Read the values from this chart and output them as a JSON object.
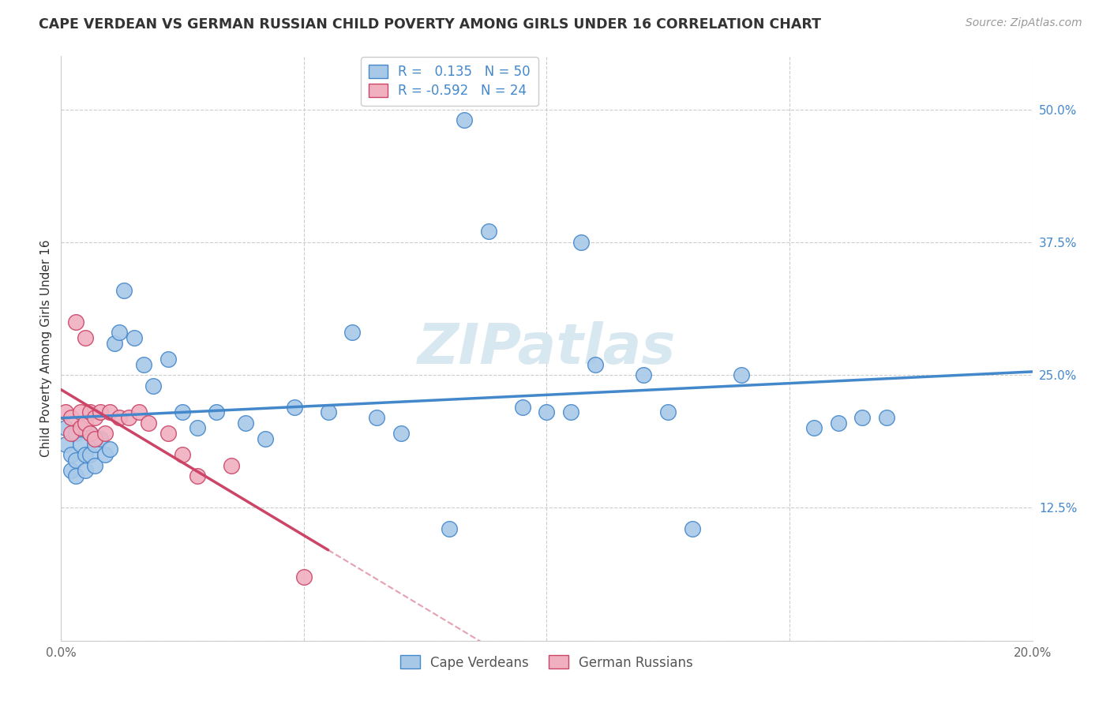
{
  "title": "CAPE VERDEAN VS GERMAN RUSSIAN CHILD POVERTY AMONG GIRLS UNDER 16 CORRELATION CHART",
  "source": "Source: ZipAtlas.com",
  "ylabel": "Child Poverty Among Girls Under 16",
  "xlim": [
    0.0,
    0.2
  ],
  "ylim": [
    0.0,
    0.55
  ],
  "yticks": [
    0.0,
    0.125,
    0.25,
    0.375,
    0.5
  ],
  "ytick_labels": [
    "",
    "12.5%",
    "25.0%",
    "37.5%",
    "50.0%"
  ],
  "xticks": [
    0.0,
    0.05,
    0.1,
    0.15,
    0.2
  ],
  "xtick_labels": [
    "0.0%",
    "",
    "",
    "",
    "20.0%"
  ],
  "R_blue": 0.135,
  "N_blue": 50,
  "R_pink": -0.592,
  "N_pink": 24,
  "blue_color": "#A8C8E8",
  "pink_color": "#F0B0C0",
  "line_blue": "#4488CC",
  "line_pink": "#CC4466",
  "watermark_color": "#D8E8F0",
  "legend_label_blue": "Cape Verdeans",
  "legend_label_pink": "German Russians",
  "blue_x": [
    0.001,
    0.001,
    0.002,
    0.002,
    0.003,
    0.003,
    0.003,
    0.004,
    0.005,
    0.005,
    0.006,
    0.006,
    0.007,
    0.007,
    0.008,
    0.009,
    0.01,
    0.011,
    0.012,
    0.013,
    0.015,
    0.017,
    0.019,
    0.022,
    0.025,
    0.028,
    0.032,
    0.038,
    0.042,
    0.048,
    0.055,
    0.06,
    0.065,
    0.07,
    0.08,
    0.083,
    0.088,
    0.095,
    0.1,
    0.105,
    0.107,
    0.11,
    0.12,
    0.125,
    0.13,
    0.14,
    0.155,
    0.16,
    0.165,
    0.17
  ],
  "blue_y": [
    0.2,
    0.185,
    0.175,
    0.16,
    0.195,
    0.17,
    0.155,
    0.185,
    0.175,
    0.16,
    0.195,
    0.175,
    0.185,
    0.165,
    0.19,
    0.175,
    0.18,
    0.28,
    0.29,
    0.33,
    0.285,
    0.26,
    0.24,
    0.265,
    0.215,
    0.2,
    0.215,
    0.205,
    0.19,
    0.22,
    0.215,
    0.29,
    0.21,
    0.195,
    0.105,
    0.49,
    0.385,
    0.22,
    0.215,
    0.215,
    0.375,
    0.26,
    0.25,
    0.215,
    0.105,
    0.25,
    0.2,
    0.205,
    0.21,
    0.21
  ],
  "pink_x": [
    0.001,
    0.002,
    0.002,
    0.003,
    0.004,
    0.004,
    0.005,
    0.005,
    0.006,
    0.006,
    0.007,
    0.007,
    0.008,
    0.009,
    0.01,
    0.012,
    0.014,
    0.016,
    0.018,
    0.022,
    0.025,
    0.028,
    0.035,
    0.05
  ],
  "pink_y": [
    0.215,
    0.21,
    0.195,
    0.3,
    0.215,
    0.2,
    0.285,
    0.205,
    0.215,
    0.195,
    0.21,
    0.19,
    0.215,
    0.195,
    0.215,
    0.21,
    0.21,
    0.215,
    0.205,
    0.195,
    0.175,
    0.155,
    0.165,
    0.06
  ],
  "grid_color": "#CCCCCC",
  "spine_color": "#CCCCCC"
}
